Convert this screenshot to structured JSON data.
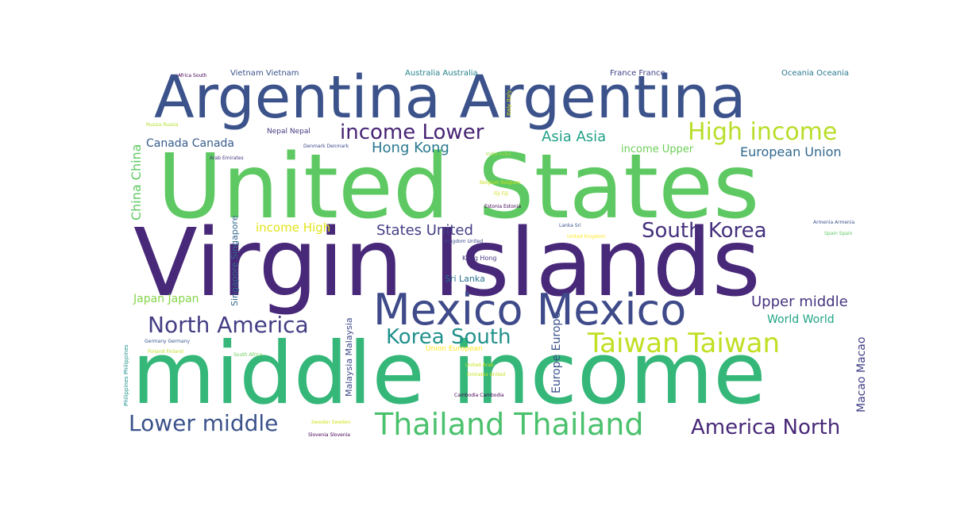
{
  "word_cloud": {
    "background": "#ffffff",
    "words": [
      {
        "text": "Argentina Argentina",
        "color": "#3b528b",
        "orientation": "horizontal"
      },
      {
        "text": "United States",
        "color": "#5ec962",
        "orientation": "horizontal"
      },
      {
        "text": "Virgin Islands",
        "color": "#482878",
        "orientation": "horizontal"
      },
      {
        "text": "middle income",
        "color": "#35b779",
        "orientation": "horizontal"
      },
      {
        "text": "Mexico Mexico",
        "color": "#3e4a89",
        "orientation": "horizontal"
      },
      {
        "text": "Thailand Thailand",
        "color": "#4ac16d",
        "orientation": "horizontal"
      },
      {
        "text": "Taiwan Taiwan",
        "color": "#c2df23",
        "orientation": "horizontal"
      },
      {
        "text": "North America",
        "color": "#433e85",
        "orientation": "horizontal"
      },
      {
        "text": "income Lower",
        "color": "#482475",
        "orientation": "horizontal"
      },
      {
        "text": "High income",
        "color": "#b8de29",
        "orientation": "horizontal"
      },
      {
        "text": "South Korea",
        "color": "#46317e",
        "orientation": "horizontal"
      },
      {
        "text": "Korea South",
        "color": "#21918c",
        "orientation": "horizontal"
      },
      {
        "text": "Lower middle",
        "color": "#3b528b",
        "orientation": "horizontal"
      },
      {
        "text": "America North",
        "color": "#482878",
        "orientation": "horizontal"
      },
      {
        "text": "Upper middle",
        "color": "#46337f",
        "orientation": "horizontal"
      },
      {
        "text": "States United",
        "color": "#433e85",
        "orientation": "horizontal"
      },
      {
        "text": "Hong Kong",
        "color": "#2a788e",
        "orientation": "horizontal"
      },
      {
        "text": "Asia Asia",
        "color": "#1fa187",
        "orientation": "horizontal"
      },
      {
        "text": "European Union",
        "color": "#31688e",
        "orientation": "horizontal"
      },
      {
        "text": "Canada Canada",
        "color": "#365c8d",
        "orientation": "horizontal"
      },
      {
        "text": "income High",
        "color": "#e2e418",
        "orientation": "horizontal"
      },
      {
        "text": "income Upper",
        "color": "#6ece58",
        "orientation": "horizontal"
      },
      {
        "text": "World World",
        "color": "#20a486",
        "orientation": "horizontal"
      },
      {
        "text": "Japan Japan",
        "color": "#86d549",
        "orientation": "horizontal"
      },
      {
        "text": "Sri Lanka",
        "color": "#2c728e",
        "orientation": "horizontal"
      },
      {
        "text": "China China",
        "color": "#5ec962",
        "orientation": "vertical"
      },
      {
        "text": "Europe Europe",
        "color": "#3b528b",
        "orientation": "vertical"
      },
      {
        "text": "Macao Macao",
        "color": "#424086",
        "orientation": "vertical"
      },
      {
        "text": "Singapore Singapore",
        "color": "#31688e",
        "orientation": "vertical"
      },
      {
        "text": "Malaysia Malaysia",
        "color": "#3e4989",
        "orientation": "vertical"
      },
      {
        "text": "Philippines Philippines",
        "color": "#21918c",
        "orientation": "vertical"
      },
      {
        "text": "Italy Italy",
        "color": "#dde318",
        "orientation": "vertical"
      },
      {
        "text": "Vietnam Vietnam",
        "color": "#3b528b",
        "orientation": "horizontal"
      },
      {
        "text": "Australia Australia",
        "color": "#26828e",
        "orientation": "horizontal"
      },
      {
        "text": "France France",
        "color": "#414487",
        "orientation": "horizontal"
      },
      {
        "text": "Oceania Oceania",
        "color": "#2a788e",
        "orientation": "horizontal"
      },
      {
        "text": "Africa South",
        "color": "#440154",
        "orientation": "horizontal"
      },
      {
        "text": "Russia Russia",
        "color": "#b5de2b",
        "orientation": "horizontal"
      },
      {
        "text": "Nepal Nepal",
        "color": "#443a83",
        "orientation": "horizontal"
      },
      {
        "text": "Denmark Denmark",
        "color": "#3e4a89",
        "orientation": "horizontal"
      },
      {
        "text": "Arab Emirates",
        "color": "#46327e",
        "orientation": "horizontal"
      },
      {
        "text": "India India",
        "color": "#9fda3a",
        "orientation": "horizontal"
      },
      {
        "text": "Belgium Belgium",
        "color": "#c8e020",
        "orientation": "horizontal"
      },
      {
        "text": "Fiji Fiji",
        "color": "#d0e11c",
        "orientation": "horizontal"
      },
      {
        "text": "Estonia Estonia",
        "color": "#440154",
        "orientation": "horizontal"
      },
      {
        "text": "Kingdom United",
        "color": "#3e4a89",
        "orientation": "horizontal"
      },
      {
        "text": "Lanka Sri",
        "color": "#39558c",
        "orientation": "horizontal"
      },
      {
        "text": "United Kingdom",
        "color": "#fde725",
        "orientation": "horizontal"
      },
      {
        "text": "Armenia Armenia",
        "color": "#3b528b",
        "orientation": "horizontal"
      },
      {
        "text": "Spain Spain",
        "color": "#5ec962",
        "orientation": "horizontal"
      },
      {
        "text": "Kong Hong",
        "color": "#46337f",
        "orientation": "horizontal"
      },
      {
        "text": "Union European",
        "color": "#fde725",
        "orientation": "horizontal"
      },
      {
        "text": "Germany Germany",
        "color": "#39568c",
        "orientation": "horizontal"
      },
      {
        "text": "Finland Finland",
        "color": "#c0df25",
        "orientation": "horizontal"
      },
      {
        "text": "South Africa",
        "color": "#6ece58",
        "orientation": "horizontal"
      },
      {
        "text": "United Arab",
        "color": "#c8e020",
        "orientation": "horizontal"
      },
      {
        "text": "Emirates United",
        "color": "#c8e020",
        "orientation": "horizontal"
      },
      {
        "text": "Cambodia Cambodia",
        "color": "#440154",
        "orientation": "horizontal"
      },
      {
        "text": "Sweden Sweden",
        "color": "#d2e21b",
        "orientation": "horizontal"
      },
      {
        "text": "Slovenia Slovenia",
        "color": "#440154",
        "orientation": "horizontal"
      }
    ]
  }
}
